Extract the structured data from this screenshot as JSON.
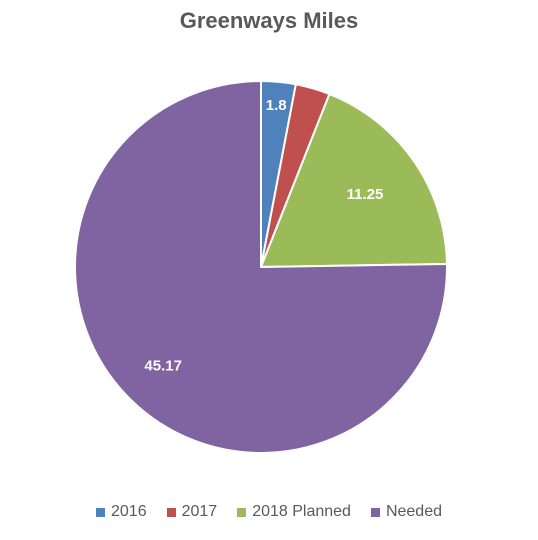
{
  "chart_data": {
    "type": "pie",
    "title": "Greenways Miles",
    "legend_position": "bottom",
    "slices": [
      {
        "name": "2016",
        "value": 1.8,
        "label": "1.8",
        "color": "#4F81BD",
        "show_label": true
      },
      {
        "name": "2017",
        "value": 1.8,
        "label": "",
        "color": "#C0504D",
        "show_label": false
      },
      {
        "name": "2018 Planned",
        "value": 11.25,
        "label": "11.25",
        "color": "#9BBB59",
        "show_label": true
      },
      {
        "name": "Needed",
        "value": 45.17,
        "label": "45.17",
        "color": "#8064A2",
        "show_label": true
      }
    ]
  }
}
